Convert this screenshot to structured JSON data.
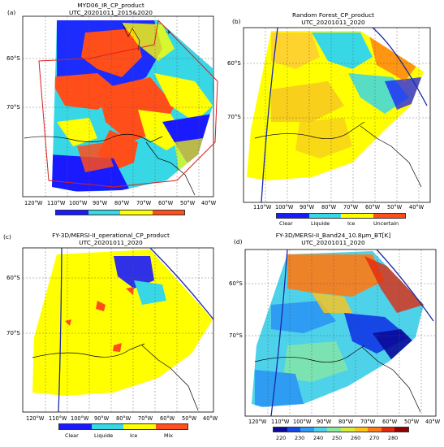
{
  "panels": [
    {
      "letter": "(a)",
      "title_line1": "MYD06_IR_CP_product",
      "title_line2": "UTC_20201011_2015&2020",
      "lat_labels": [
        "60°S",
        "70°S"
      ],
      "lon_labels": [
        "120°W",
        "110°W",
        "100°W",
        "90°W",
        "80°W",
        "70°W",
        "60°W",
        "50°W",
        "40°W"
      ],
      "colorbar_colors": [
        "#1a1aff",
        "#38d7e6",
        "#ffff00",
        "#ff4e1a"
      ],
      "colorbar_labels": [],
      "has_region_box": true
    },
    {
      "letter": "(b)",
      "title_line1": "Random Forest_CP_product",
      "title_line2": "UTC_20201011_2020",
      "lat_labels": [
        "60°S",
        "70°S"
      ],
      "lon_labels": [
        "110°W",
        "100°W",
        "90°W",
        "80°W",
        "70°W",
        "60°W",
        "50°W",
        "40°W"
      ],
      "colorbar_colors": [
        "#1a1aff",
        "#38d7e6",
        "#ffff00",
        "#ff4e1a"
      ],
      "colorbar_labels": [
        "Clear",
        "Liquide",
        "Ice",
        "Uncertain"
      ]
    },
    {
      "letter": "(c)",
      "title_line1": "FY-3D/MERSI-II_operational_CP_product",
      "title_line2": "UTC_20201011_2020",
      "lat_labels": [
        "60°S",
        "70°S"
      ],
      "lon_labels": [
        "120°W",
        "110°W",
        "100°W",
        "90°W",
        "80°W",
        "70°W",
        "60°W",
        "50°W",
        "40°W"
      ],
      "colorbar_colors": [
        "#1a1aff",
        "#38d7e6",
        "#ffff00",
        "#ff4e1a"
      ],
      "colorbar_labels": [
        "Clear",
        "Liquide",
        "Ice",
        "Mix"
      ]
    },
    {
      "letter": "(d)",
      "title_line1": "FY-3D/MERSI-II_Band24_10.8μm_BT[K]",
      "title_line2": "UTC_20201011_2020",
      "lat_labels": [
        "60°S",
        "70°S"
      ],
      "lon_labels": [
        "120°W",
        "110°W",
        "100°W",
        "90°W",
        "80°W",
        "70°W",
        "60°W",
        "50°W",
        "40°W"
      ],
      "colorbar_colors": [
        "#0a0a9a",
        "#1646e6",
        "#2e9cf2",
        "#4ed2ea",
        "#8ee89a",
        "#d8ec3a",
        "#ffc41a",
        "#ff7a14",
        "#e02a10",
        "#900000"
      ],
      "colorbar_labels": [
        "220",
        "230",
        "240",
        "250",
        "260",
        "270",
        "280"
      ]
    }
  ]
}
